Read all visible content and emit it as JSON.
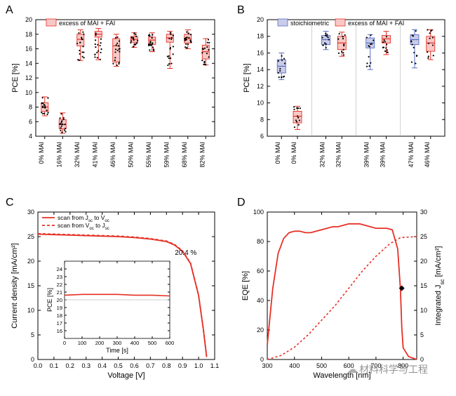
{
  "colors": {
    "axis": "#000000",
    "red": "#e63025",
    "red_fill": "#f7c8c6",
    "blue": "#5a6cc0",
    "blue_fill": "#c8cce8",
    "grid": "#cccccc",
    "bg": "#ffffff"
  },
  "panelA": {
    "label": "A",
    "type": "boxplot",
    "ylabel": "PCE [%]",
    "ylim": [
      4,
      20
    ],
    "ytick_step": 2,
    "legend": [
      {
        "label": "excess of MAI + FAI",
        "fill": "#f7c8c6",
        "stroke": "#e63025"
      }
    ],
    "categories": [
      "0% MAI",
      "16% MAI",
      "32% MAI",
      "41% MAI",
      "46% MAI",
      "50% MAI",
      "55% MAI",
      "59% MAI",
      "68% MAI",
      "82% MAI"
    ],
    "boxes": [
      {
        "q1": 7.4,
        "med": 8.0,
        "q3": 8.6,
        "lo": 6.8,
        "hi": 9.4
      },
      {
        "q1": 5.0,
        "med": 5.6,
        "q3": 6.3,
        "lo": 4.4,
        "hi": 7.2
      },
      {
        "q1": 16.4,
        "med": 17.3,
        "q3": 18.0,
        "lo": 14.4,
        "hi": 18.6
      },
      {
        "q1": 17.6,
        "med": 18.0,
        "q3": 18.4,
        "lo": 14.5,
        "hi": 18.8
      },
      {
        "q1": 14.2,
        "med": 16.4,
        "q3": 17.4,
        "lo": 13.6,
        "hi": 18.0
      },
      {
        "q1": 16.9,
        "med": 17.3,
        "q3": 17.7,
        "lo": 16.2,
        "hi": 18.2
      },
      {
        "q1": 16.6,
        "med": 17.2,
        "q3": 17.6,
        "lo": 15.6,
        "hi": 18.2
      },
      {
        "q1": 16.9,
        "med": 17.5,
        "q3": 18.0,
        "lo": 13.3,
        "hi": 18.4
      },
      {
        "q1": 16.8,
        "med": 17.4,
        "q3": 18.0,
        "lo": 16.0,
        "hi": 18.6
      },
      {
        "q1": 14.6,
        "med": 15.6,
        "q3": 16.5,
        "lo": 13.8,
        "hi": 17.4
      }
    ]
  },
  "panelB": {
    "label": "B",
    "type": "grouped-boxplot",
    "ylabel": "PCE [%]",
    "ylim": [
      6,
      20
    ],
    "ytick_step": 2,
    "legend": [
      {
        "label": "stoichiometric",
        "fill": "#c8cce8",
        "stroke": "#5a6cc0"
      },
      {
        "label": "excess of MAI + FAI",
        "fill": "#f7c8c6",
        "stroke": "#e63025"
      }
    ],
    "groups": [
      {
        "pair": [
          "0% MAI",
          "0% MAI"
        ],
        "blue": {
          "q1": 13.6,
          "med": 14.4,
          "q3": 15.2,
          "lo": 12.8,
          "hi": 16.0
        },
        "red": {
          "q1": 7.6,
          "med": 8.4,
          "q3": 9.0,
          "lo": 6.8,
          "hi": 9.6
        }
      },
      {
        "pair": [
          "32% MAI",
          "32% MAI"
        ],
        "blue": {
          "q1": 17.0,
          "med": 17.6,
          "q3": 18.1,
          "lo": 16.4,
          "hi": 18.6
        },
        "red": {
          "q1": 16.4,
          "med": 17.2,
          "q3": 18.0,
          "lo": 15.6,
          "hi": 18.5
        }
      },
      {
        "pair": [
          "39% MAI",
          "39% MAI"
        ],
        "blue": {
          "q1": 16.6,
          "med": 17.2,
          "q3": 17.8,
          "lo": 14.0,
          "hi": 18.2
        },
        "red": {
          "q1": 17.2,
          "med": 17.7,
          "q3": 18.1,
          "lo": 15.8,
          "hi": 18.6
        }
      },
      {
        "pair": [
          "47% MAI",
          "46% MAI"
        ],
        "blue": {
          "q1": 17.0,
          "med": 17.6,
          "q3": 18.2,
          "lo": 14.2,
          "hi": 18.8
        },
        "red": {
          "q1": 16.2,
          "med": 17.2,
          "q3": 18.0,
          "lo": 15.2,
          "hi": 18.8
        }
      }
    ]
  },
  "panelC": {
    "label": "C",
    "type": "line",
    "xlabel": "Voltage [V]",
    "ylabel": "Current density [mA/cm²]",
    "xlim": [
      0.0,
      1.1
    ],
    "xtick_step": 0.1,
    "ylim": [
      0,
      30
    ],
    "ytick_step": 5,
    "annotation": "20.4 %",
    "legend": [
      {
        "label": "scan from Jsc to Voc",
        "style": "solid",
        "color": "#e63025"
      },
      {
        "label": "scan from Voc to Jsc",
        "style": "dashed",
        "color": "#e63025"
      }
    ],
    "curve_fwd": [
      [
        0,
        25.5
      ],
      [
        0.1,
        25.4
      ],
      [
        0.2,
        25.3
      ],
      [
        0.3,
        25.2
      ],
      [
        0.4,
        25.1
      ],
      [
        0.5,
        25.0
      ],
      [
        0.6,
        24.8
      ],
      [
        0.7,
        24.5
      ],
      [
        0.8,
        24.0
      ],
      [
        0.85,
        23.3
      ],
      [
        0.9,
        22.0
      ],
      [
        0.95,
        19.5
      ],
      [
        1.0,
        13.0
      ],
      [
        1.03,
        6.0
      ],
      [
        1.05,
        0.5
      ]
    ],
    "curve_rev": [
      [
        0,
        25.6
      ],
      [
        0.1,
        25.5
      ],
      [
        0.2,
        25.4
      ],
      [
        0.3,
        25.3
      ],
      [
        0.4,
        25.2
      ],
      [
        0.5,
        25.1
      ],
      [
        0.6,
        24.9
      ],
      [
        0.7,
        24.6
      ],
      [
        0.8,
        24.1
      ],
      [
        0.85,
        23.4
      ],
      [
        0.9,
        22.1
      ],
      [
        0.95,
        19.6
      ],
      [
        1.0,
        13.1
      ],
      [
        1.03,
        6.1
      ],
      [
        1.05,
        0.6
      ]
    ],
    "inset": {
      "xlabel": "Time [s]",
      "ylabel": "PCE [%]",
      "xlim": [
        0,
        600
      ],
      "xtick_step": 100,
      "ylim": [
        15,
        25
      ],
      "ytick_list": [
        16,
        17,
        18,
        19,
        20,
        21,
        22,
        23,
        24
      ],
      "line": [
        [
          0,
          20.6
        ],
        [
          100,
          20.7
        ],
        [
          200,
          20.7
        ],
        [
          300,
          20.7
        ],
        [
          400,
          20.6
        ],
        [
          500,
          20.6
        ],
        [
          600,
          20.5
        ]
      ]
    }
  },
  "panelD": {
    "label": "D",
    "type": "dual-axis",
    "xlabel": "Wavelength [nm]",
    "ylabel_left": "EQE [%]",
    "ylabel_right": "Integrated Jsc [mA/cm²]",
    "xlim": [
      300,
      850
    ],
    "xtick_step": 100,
    "ylim_left": [
      0,
      100
    ],
    "ytick_left": 20,
    "ylim_right": [
      0,
      30
    ],
    "ytick_right": 5,
    "eqe": [
      [
        300,
        10
      ],
      [
        320,
        48
      ],
      [
        340,
        72
      ],
      [
        360,
        82
      ],
      [
        380,
        86
      ],
      [
        400,
        87
      ],
      [
        420,
        87
      ],
      [
        440,
        86
      ],
      [
        460,
        86
      ],
      [
        480,
        87
      ],
      [
        500,
        88
      ],
      [
        520,
        89
      ],
      [
        540,
        90
      ],
      [
        560,
        90
      ],
      [
        580,
        91
      ],
      [
        600,
        92
      ],
      [
        620,
        92
      ],
      [
        640,
        92
      ],
      [
        660,
        91
      ],
      [
        680,
        90
      ],
      [
        700,
        89
      ],
      [
        720,
        89
      ],
      [
        740,
        89
      ],
      [
        760,
        88
      ],
      [
        780,
        75
      ],
      [
        790,
        48
      ],
      [
        795,
        22
      ],
      [
        800,
        8
      ],
      [
        820,
        2
      ],
      [
        850,
        0
      ]
    ],
    "jsc": [
      [
        300,
        0
      ],
      [
        350,
        0.8
      ],
      [
        400,
        2.5
      ],
      [
        450,
        5.0
      ],
      [
        500,
        8.0
      ],
      [
        550,
        11.0
      ],
      [
        600,
        14.5
      ],
      [
        650,
        18.0
      ],
      [
        700,
        21.0
      ],
      [
        750,
        23.5
      ],
      [
        790,
        24.8
      ],
      [
        850,
        25.0
      ]
    ],
    "marker": {
      "x": 795,
      "y_right": 14.5
    }
  },
  "watermark": "材料科学与工程"
}
